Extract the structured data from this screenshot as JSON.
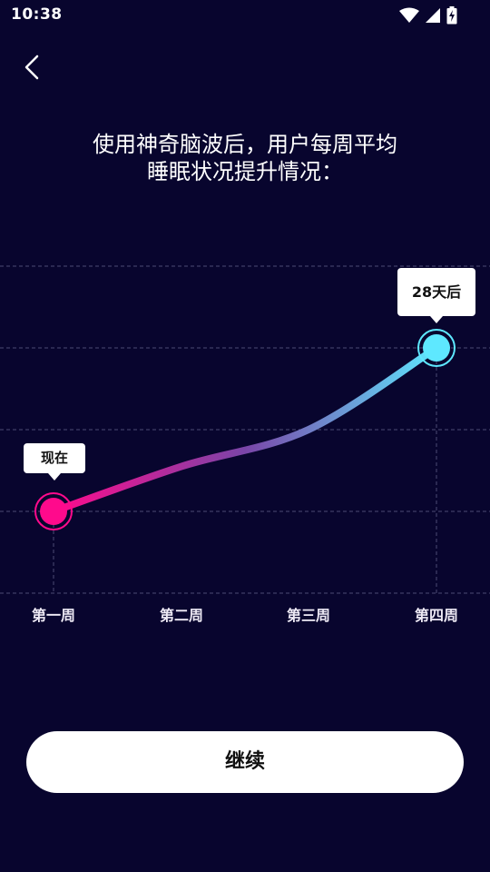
{
  "status_bar": {
    "time": "10:38",
    "icons": [
      "wifi-icon",
      "signal-icon",
      "battery-charging-icon"
    ]
  },
  "header": {
    "back_icon": "chevron-left-icon"
  },
  "headline": {
    "line1": "使用神奇脑波后，用户每周平均",
    "line2": "睡眠状况提升情况："
  },
  "chart_data": {
    "type": "line",
    "categories": [
      "第一周",
      "第二周",
      "第三周",
      "第四周"
    ],
    "values": [
      1.0,
      1.55,
      2.0,
      3.0
    ],
    "ylim": [
      0,
      4
    ],
    "grid": true,
    "annotations": [
      {
        "label": "现在",
        "category": "第一周"
      },
      {
        "label": "28天后",
        "category": "第四周"
      }
    ],
    "colors": {
      "start": "#ff0a8c",
      "mid": "#7a45a8",
      "end": "#5ee8ff"
    }
  },
  "button": {
    "continue_label": "继续"
  },
  "colors": {
    "background": "#08052e",
    "grid": "#4d4a74"
  }
}
